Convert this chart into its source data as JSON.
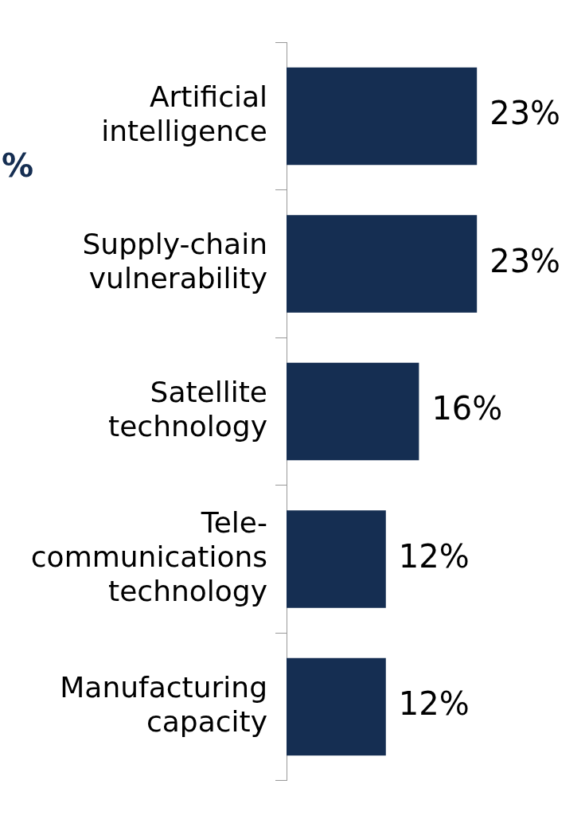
{
  "chart_data": {
    "type": "bar",
    "orientation": "horizontal",
    "categories": [
      "Artificial\nintelligence",
      "Supply-chain\nvulnerability",
      "Satellite\ntechnology",
      "Tele-\ncommunications\ntechnology",
      "Manufacturing\ncapacity"
    ],
    "values": [
      23,
      23,
      16,
      12,
      12
    ],
    "color": "#152e52",
    "value_labels": [
      "23%",
      "23%",
      "16%",
      "12%",
      "12%"
    ],
    "tick_labels": "y",
    "annotations": [
      "%"
    ]
  }
}
